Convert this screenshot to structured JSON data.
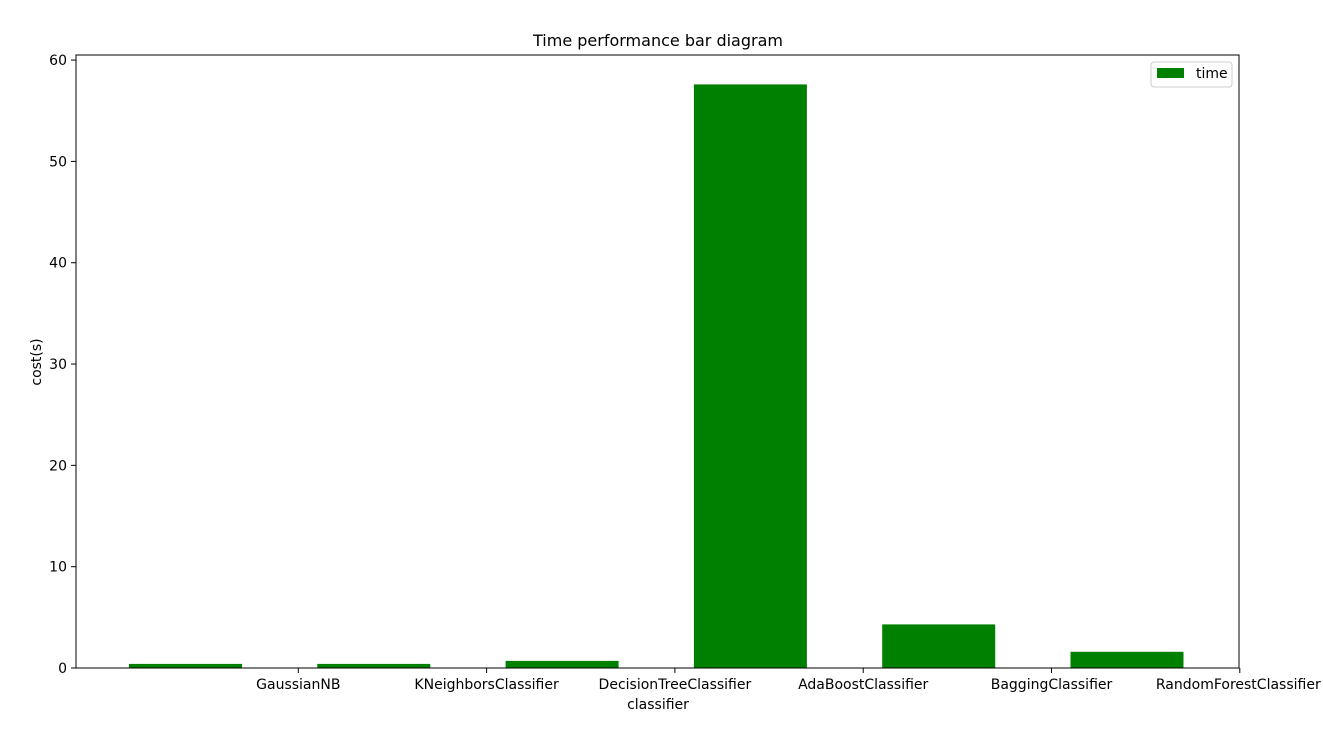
{
  "chart_data": {
    "type": "bar",
    "title": "Time performance bar diagram",
    "xlabel": "classifier",
    "ylabel": "cost(s)",
    "ylim": [
      0,
      60.5
    ],
    "yticks": [
      0,
      10,
      20,
      30,
      40,
      50,
      60
    ],
    "xtick_labels": [
      "GaussianNB",
      "KNeighborsClassifier",
      "DecisionTreeClassifier",
      "AdaBoostClassifier",
      "BaggingClassifier",
      "RandomForestClassifier"
    ],
    "values": [
      0.4,
      0.4,
      0.7,
      57.6,
      4.3,
      1.6
    ],
    "series": [
      {
        "name": "time",
        "values": [
          0.4,
          0.4,
          0.7,
          57.6,
          4.3,
          1.6
        ]
      }
    ],
    "legend": {
      "position": "top-right"
    },
    "grid": false,
    "bar_color": "#008000"
  }
}
